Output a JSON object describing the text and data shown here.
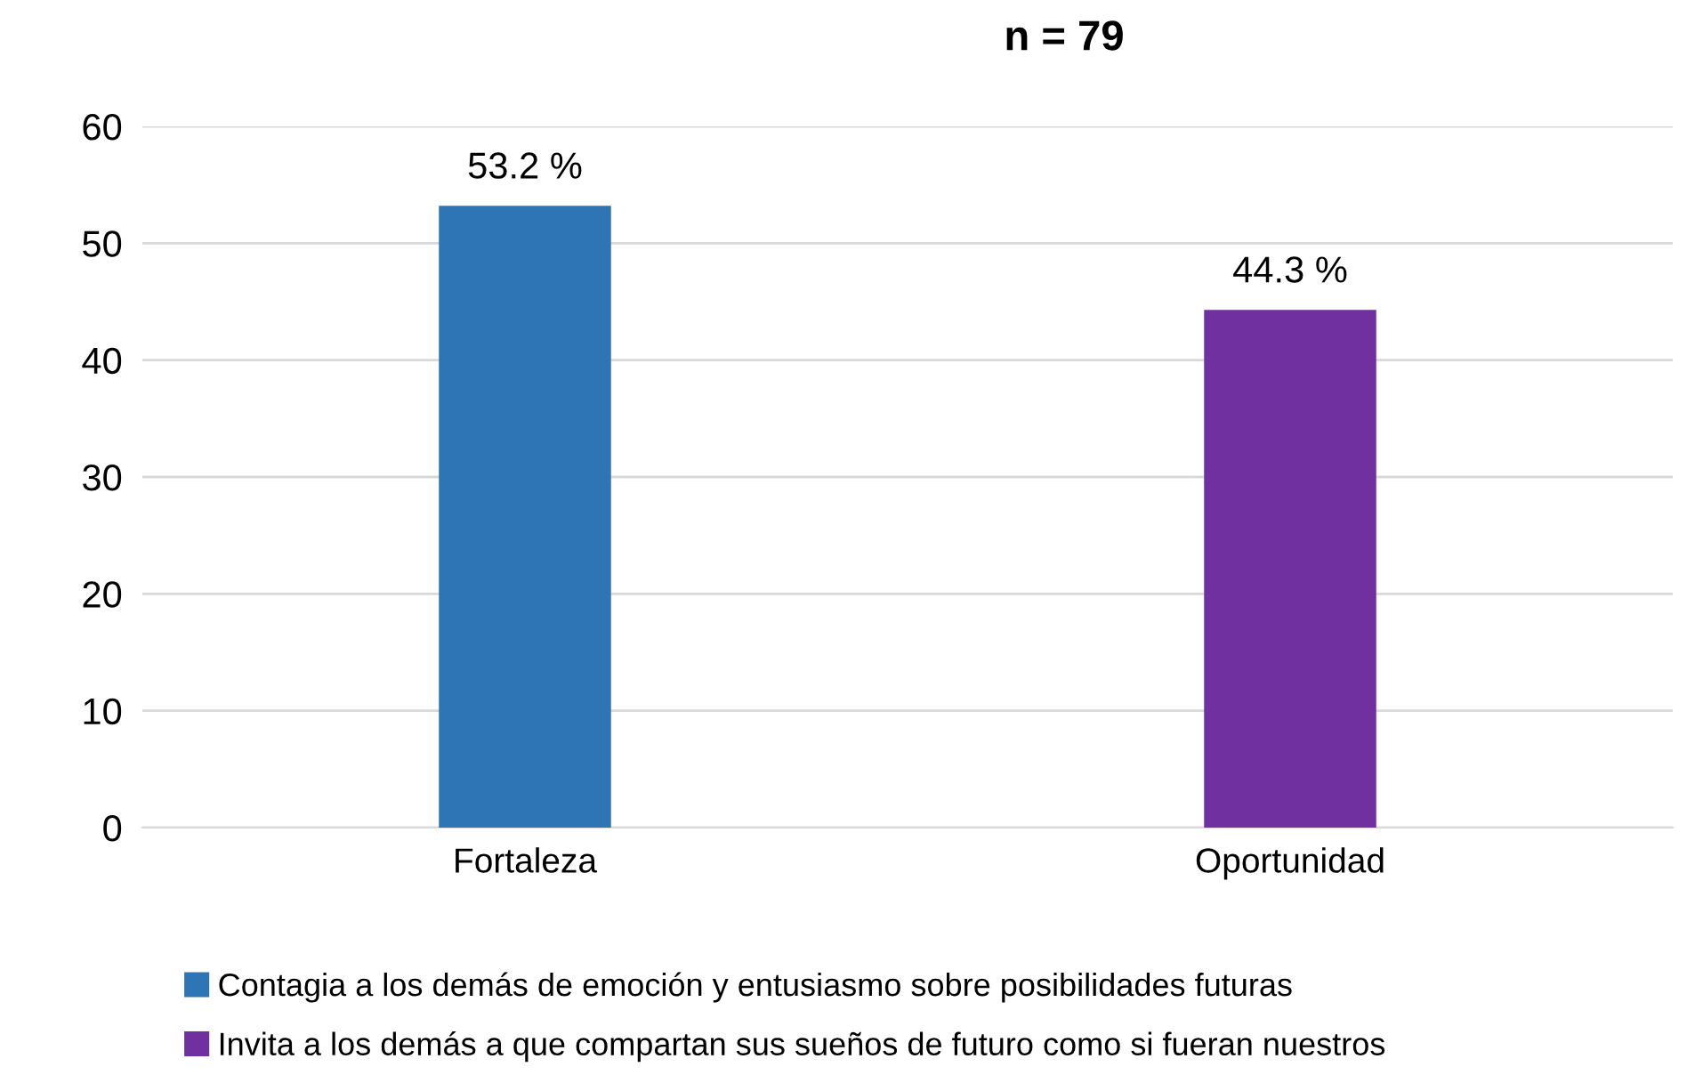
{
  "chart_data": {
    "type": "bar",
    "title": "n = 79",
    "categories": [
      "Fortaleza",
      "Oportunidad"
    ],
    "series": [
      {
        "name": "Contagia a los demás de emoción y entusiasmo sobre posibilidades futuras",
        "color": "#2e75b6",
        "values": [
          53.2,
          null
        ],
        "value_labels": [
          "53.2 %",
          null
        ]
      },
      {
        "name": "Invita a los demás a que compartan sus sueños de futuro como si fueran nuestros",
        "color": "#7030a0",
        "values": [
          null,
          44.3
        ],
        "value_labels": [
          null,
          "44.3 %"
        ]
      }
    ],
    "ylim": [
      0,
      60
    ],
    "yticks": [
      0,
      10,
      20,
      30,
      40,
      50,
      60
    ],
    "grid": "y",
    "legend": "bottom"
  }
}
